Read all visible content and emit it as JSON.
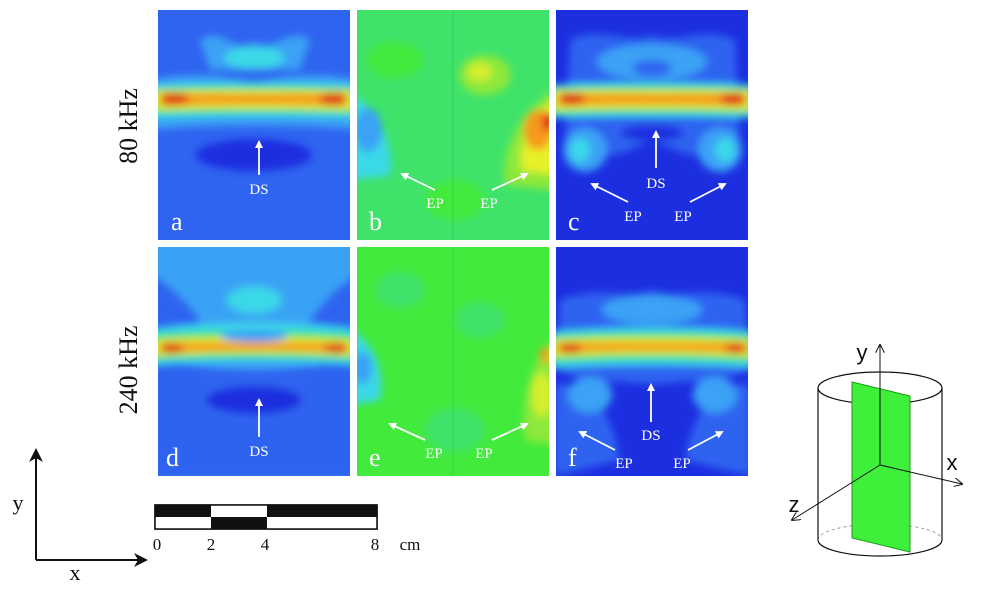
{
  "rows": [
    {
      "label": "80 kHz"
    },
    {
      "label": "240 kHz"
    }
  ],
  "panels": [
    {
      "letter": "a",
      "annotations": [
        "DS"
      ]
    },
    {
      "letter": "b",
      "annotations": [
        "EP",
        "EP"
      ]
    },
    {
      "letter": "c",
      "annotations": [
        "DS",
        "EP",
        "EP"
      ]
    },
    {
      "letter": "d",
      "annotations": [
        "DS"
      ]
    },
    {
      "letter": "e",
      "annotations": [
        "EP",
        "EP"
      ]
    },
    {
      "letter": "f",
      "annotations": [
        "DS",
        "EP",
        "EP"
      ]
    }
  ],
  "scale_bar": {
    "ticks": [
      "0",
      "2",
      "4",
      "8"
    ],
    "unit": "cm"
  },
  "axes_2d": {
    "y": "y",
    "x": "x"
  },
  "axes_3d": {
    "y": "y",
    "x": "x",
    "z": "z"
  },
  "colors": {
    "deep_blue": "#1c2fe0",
    "blue": "#2f64f0",
    "light_blue": "#3aa2f5",
    "cyan": "#3ad8e8",
    "green": "#3fe36a",
    "bright_green": "#42ea3c",
    "yellow": "#e8f02c",
    "orange": "#f59a1c",
    "red": "#e0281c",
    "plane_green": "#3ef03a"
  }
}
